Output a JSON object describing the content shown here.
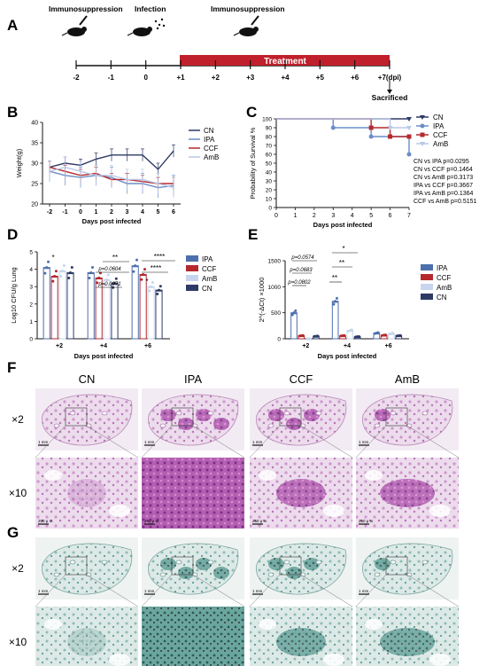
{
  "panels": {
    "A": "A",
    "B": "B",
    "C": "C",
    "D": "D",
    "E": "E",
    "F": "F",
    "G": "G"
  },
  "timeline": {
    "events": [
      "Immunosuppression",
      "Infection",
      "Immunosuppression"
    ],
    "treatment_label": "Treatment",
    "ticks": [
      "-2",
      "-1",
      "0",
      "+1",
      "+2",
      "+3",
      "+4",
      "+5",
      "+6",
      "+7(dpi)"
    ],
    "sacrificed_label": "Sacrificed",
    "colors": {
      "treatment": "#c0202b",
      "axis": "#111111"
    }
  },
  "chart_data": [
    {
      "id": "B",
      "type": "line",
      "ylabel": "Weight(g)",
      "xlabel": "Days post infected",
      "x": [
        -2,
        -1,
        0,
        1,
        2,
        3,
        4,
        5,
        6
      ],
      "xticks": [
        "-2",
        "-1",
        "0",
        "1",
        "2",
        "3",
        "4",
        "5",
        "6"
      ],
      "ylim": [
        20,
        40
      ],
      "yticks": [
        20,
        25,
        30,
        35,
        40
      ],
      "legend_placement": "right",
      "series": [
        {
          "name": "CN",
          "color": "#2e3a66",
          "values": [
            29,
            30,
            29.5,
            31,
            32,
            32,
            32,
            28.5,
            33
          ]
        },
        {
          "name": "IPA",
          "color": "#6a8dc8",
          "values": [
            28,
            27,
            26.5,
            27,
            26.5,
            25,
            25,
            24,
            24.5
          ]
        },
        {
          "name": "CCF",
          "color": "#b5292d",
          "values": [
            29,
            28,
            27,
            27.5,
            26,
            26,
            25.5,
            25,
            25
          ]
        },
        {
          "name": "AmB",
          "color": "#b8c8e8",
          "values": [
            28,
            29,
            28,
            27,
            27,
            26,
            26,
            25,
            24
          ]
        }
      ]
    },
    {
      "id": "C",
      "type": "line",
      "ylabel": "Probability of Survival %",
      "xlabel": "Days post infected",
      "xlim": [
        0,
        7
      ],
      "xticks": [
        "0",
        "1",
        "2",
        "3",
        "4",
        "5",
        "6",
        "7"
      ],
      "ylim": [
        0,
        100
      ],
      "yticks": [
        0,
        10,
        20,
        30,
        40,
        50,
        60,
        70,
        80,
        90,
        100
      ],
      "legend_placement": "top-right",
      "series": [
        {
          "name": "CN",
          "color": "#2e3a66",
          "steps": [
            [
              0,
              100
            ],
            [
              7,
              100
            ]
          ]
        },
        {
          "name": "IPA",
          "color": "#6a8dc8",
          "steps": [
            [
              0,
              100
            ],
            [
              3,
              90
            ],
            [
              5,
              80
            ],
            [
              7,
              60
            ]
          ]
        },
        {
          "name": "CCF",
          "color": "#b5292d",
          "steps": [
            [
              0,
              100
            ],
            [
              5,
              90
            ],
            [
              6,
              80
            ],
            [
              7,
              80
            ]
          ]
        },
        {
          "name": "AmB",
          "color": "#b8c8e8",
          "steps": [
            [
              0,
              100
            ],
            [
              6,
              90
            ],
            [
              7,
              90
            ]
          ]
        }
      ],
      "stats": [
        "CN vs IPA p=0.0295",
        "CN vs CCF p=0.1464",
        "CN vs AmB p=0.3173",
        "IPA vs CCF p=0.3667",
        "IPA vs AmB p=0.1364",
        "CCF vs AmB p=0.5151"
      ]
    },
    {
      "id": "D",
      "type": "bar",
      "ylabel": "Log10 CFU/g Lung",
      "xlabel": "Days post infected",
      "categories": [
        "+2",
        "+4",
        "+6"
      ],
      "ylim": [
        0,
        5
      ],
      "yticks": [
        0,
        1,
        2,
        3,
        4,
        5
      ],
      "legend_placement": "right",
      "series": [
        {
          "name": "IPA",
          "color": "#4d6fad",
          "values": [
            4.1,
            3.8,
            4.2
          ]
        },
        {
          "name": "CCF",
          "color": "#b5292d",
          "values": [
            3.6,
            3.5,
            3.7
          ]
        },
        {
          "name": "AmB",
          "color": "#c7d6ee",
          "values": [
            3.9,
            3.4,
            3.0
          ]
        },
        {
          "name": "CN",
          "color": "#2e3a66",
          "values": [
            3.8,
            3.2,
            2.8
          ]
        }
      ],
      "annotations": [
        "*",
        "**",
        "p=0.0604",
        "p=0.0971",
        "****",
        "****",
        "*"
      ]
    },
    {
      "id": "E",
      "type": "bar",
      "ylabel": "2^(-ΔCt) ×1000",
      "xlabel": "Days post infected",
      "categories": [
        "+2",
        "+4",
        "+6"
      ],
      "ylim": [
        0,
        1500
      ],
      "yticks": [
        0,
        500,
        1000,
        1500
      ],
      "legend_placement": "right",
      "series": [
        {
          "name": "IPA",
          "color": "#4d6fad",
          "values": [
            500,
            720,
            110
          ]
        },
        {
          "name": "CCF",
          "color": "#b5292d",
          "values": [
            60,
            60,
            70
          ]
        },
        {
          "name": "AmB",
          "color": "#c7d6ee",
          "values": [
            0,
            160,
            100
          ]
        },
        {
          "name": "CN",
          "color": "#2e3a66",
          "values": [
            50,
            40,
            60
          ]
        }
      ],
      "annotations": [
        "p=0.0574",
        "p=0.0683",
        "p=0.0802",
        "*",
        "**",
        "**"
      ]
    }
  ],
  "histology": {
    "columns": [
      "CN",
      "IPA",
      "CCF",
      "AmB"
    ],
    "rows_F": [
      "×2",
      "×10"
    ],
    "rows_G": [
      "×2",
      "×10"
    ],
    "scalebar_low": "1 mm",
    "scalebar_high": "250 μ m",
    "colors": {
      "he_bg": "#e9dde9",
      "he_tissue": "#c98ac8",
      "he_dense": "#8a3c92",
      "gms_bg": "#e4ebea",
      "gms_tissue": "#5b9a94",
      "gms_dense": "#2c5b55"
    }
  }
}
